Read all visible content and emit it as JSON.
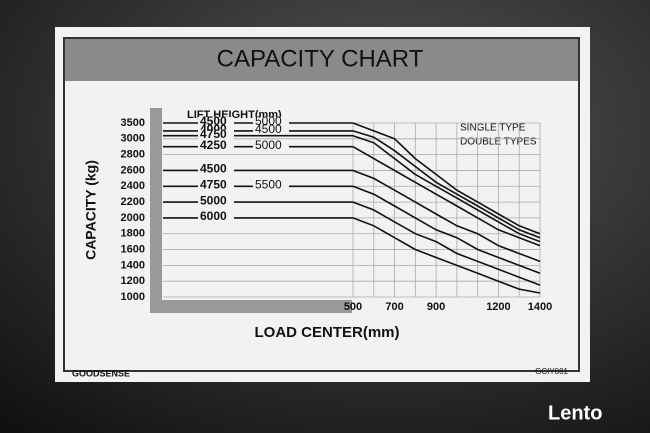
{
  "chart_data": {
    "type": "line",
    "title": "CAPACITY CHART",
    "y_label": "CAPACITY (kg)",
    "x_label": "LOAD CENTER(mm)",
    "series_header": "LIFT HEIGHT(mm)",
    "notes": [
      "SINGLE TYPE",
      "DOUBLE TYPES"
    ],
    "x": [
      500,
      600,
      700,
      800,
      900,
      1000,
      1100,
      1200,
      1300,
      1400
    ],
    "xlim": [
      500,
      1400
    ],
    "xticks": [
      500,
      700,
      900,
      1200,
      1400
    ],
    "minor_xticks": [
      600,
      800,
      1000,
      1100,
      1300
    ],
    "yticks": [
      3500,
      3000,
      2800,
      2600,
      2400,
      2200,
      2000,
      1800,
      1600,
      1400,
      1200,
      1000
    ],
    "grid": true,
    "series": [
      {
        "labels": [
          "4500",
          "5000"
        ],
        "color": "#111111",
        "values": [
          3500,
          3250,
          3000,
          2750,
          2550,
          2350,
          2200,
          2050,
          1900,
          1800
        ]
      },
      {
        "labels": [
          "4000",
          "4500"
        ],
        "color": "#111111",
        "values": [
          3250,
          3050,
          2850,
          2650,
          2450,
          2300,
          2150,
          2000,
          1850,
          1750
        ]
      },
      {
        "labels": [
          "4750"
        ],
        "color": "#111111",
        "values": [
          3100,
          2950,
          2750,
          2550,
          2400,
          2250,
          2100,
          1950,
          1800,
          1700
        ]
      },
      {
        "labels": [
          "4250",
          "5000"
        ],
        "color": "#111111",
        "values": [
          2900,
          2750,
          2600,
          2450,
          2300,
          2150,
          2000,
          1850,
          1750,
          1650
        ]
      },
      {
        "labels": [
          "4500"
        ],
        "color": "#111111",
        "values": [
          2600,
          2500,
          2350,
          2200,
          2050,
          1900,
          1800,
          1650,
          1550,
          1450
        ]
      },
      {
        "labels": [
          "4750",
          "5500"
        ],
        "color": "#111111",
        "values": [
          2400,
          2300,
          2150,
          2000,
          1850,
          1750,
          1600,
          1500,
          1400,
          1300
        ]
      },
      {
        "labels": [
          "5000"
        ],
        "color": "#111111",
        "values": [
          2200,
          2100,
          1950,
          1800,
          1700,
          1550,
          1450,
          1350,
          1250,
          1150
        ]
      },
      {
        "labels": [
          "6000"
        ],
        "color": "#111111",
        "values": [
          2000,
          1900,
          1750,
          1600,
          1500,
          1400,
          1300,
          1200,
          1100,
          1050
        ]
      }
    ],
    "brand": "GOODSENSE",
    "code": "GCIY081",
    "watermark": "Lento"
  }
}
